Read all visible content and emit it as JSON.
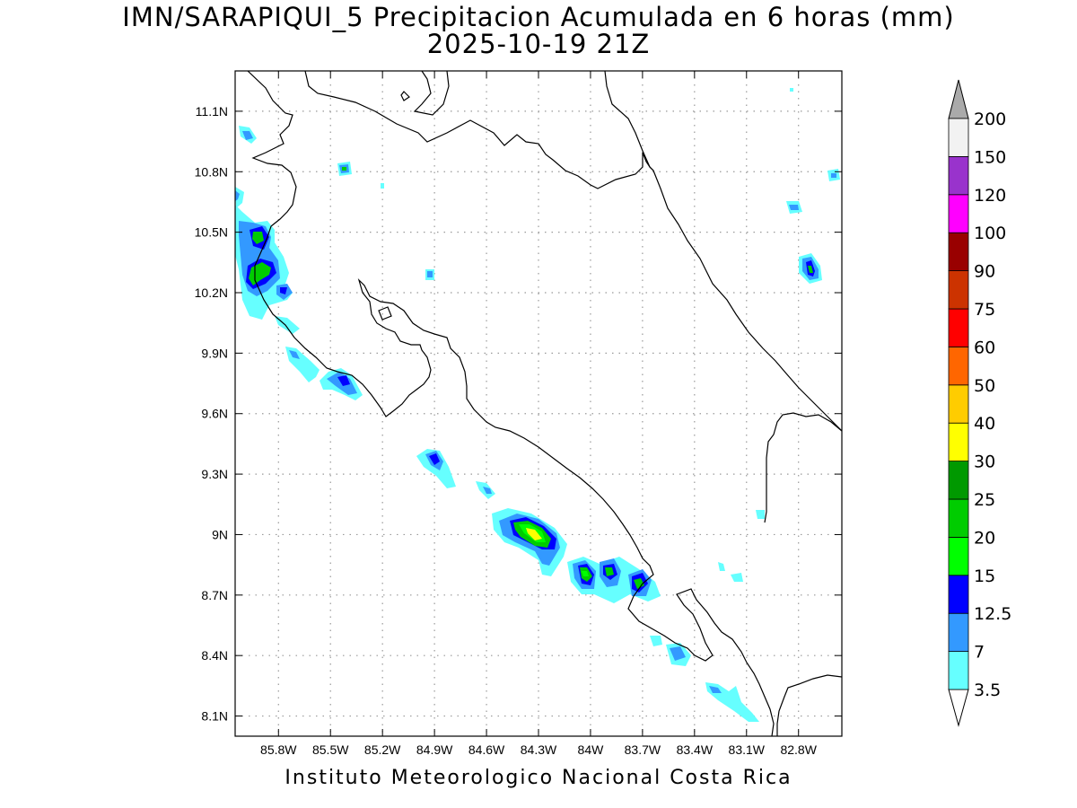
{
  "title": {
    "line1": "IMN/SARAPIQUI_5 Precipitacion Acumulada en 6 horas (mm)",
    "line2": "2025-10-19 21Z"
  },
  "footer": "Instituto Meteorologico Nacional Costa Rica",
  "map": {
    "lon_range": [
      -86.05,
      -82.55
    ],
    "lat_range": [
      8.0,
      11.3
    ],
    "lon_ticks": [
      "85.8W",
      "85.5W",
      "85.2W",
      "84.9W",
      "84.6W",
      "84.3W",
      "84W",
      "83.7W",
      "83.4W",
      "83.1W",
      "82.8W"
    ],
    "lat_ticks": [
      "11.1N",
      "10.8N",
      "10.5N",
      "10.2N",
      "9.9N",
      "9.6N",
      "9.3N",
      "9N",
      "8.7N",
      "8.4N",
      "8.1N"
    ],
    "grid": true,
    "grid_style": "dotted"
  },
  "colorbar": {
    "labels": [
      "3.5",
      "7",
      "12.5",
      "15",
      "20",
      "25",
      "30",
      "40",
      "50",
      "60",
      "75",
      "90",
      "100",
      "120",
      "150",
      "200"
    ],
    "colors": [
      "#ffffff",
      "#66ffff",
      "#3399ff",
      "#0000ff",
      "#00ff00",
      "#00cc00",
      "#009900",
      "#ffff00",
      "#ffcc00",
      "#ff6600",
      "#ff0000",
      "#cc3300",
      "#990000",
      "#ff00ff",
      "#9933cc",
      "#f2f2f2",
      "#aaaaaa"
    ]
  }
}
